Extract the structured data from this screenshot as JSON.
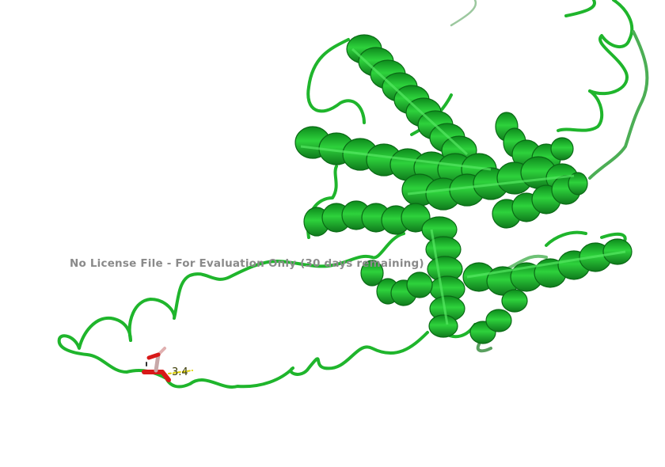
{
  "viewer": {
    "watermark_text": "No License File - For Evaluation Only (30 days remaining)",
    "measurement_label": "3.4"
  },
  "style": {
    "background": "#ffffff",
    "cartoon_color": "#1fc42f",
    "cartoon_dark": "#0c7f1a",
    "cartoon_light": "#47e055",
    "ligand_color": "#d81818",
    "measurement_color": "#e0d000",
    "watermark_color": "#8a8a8a"
  }
}
